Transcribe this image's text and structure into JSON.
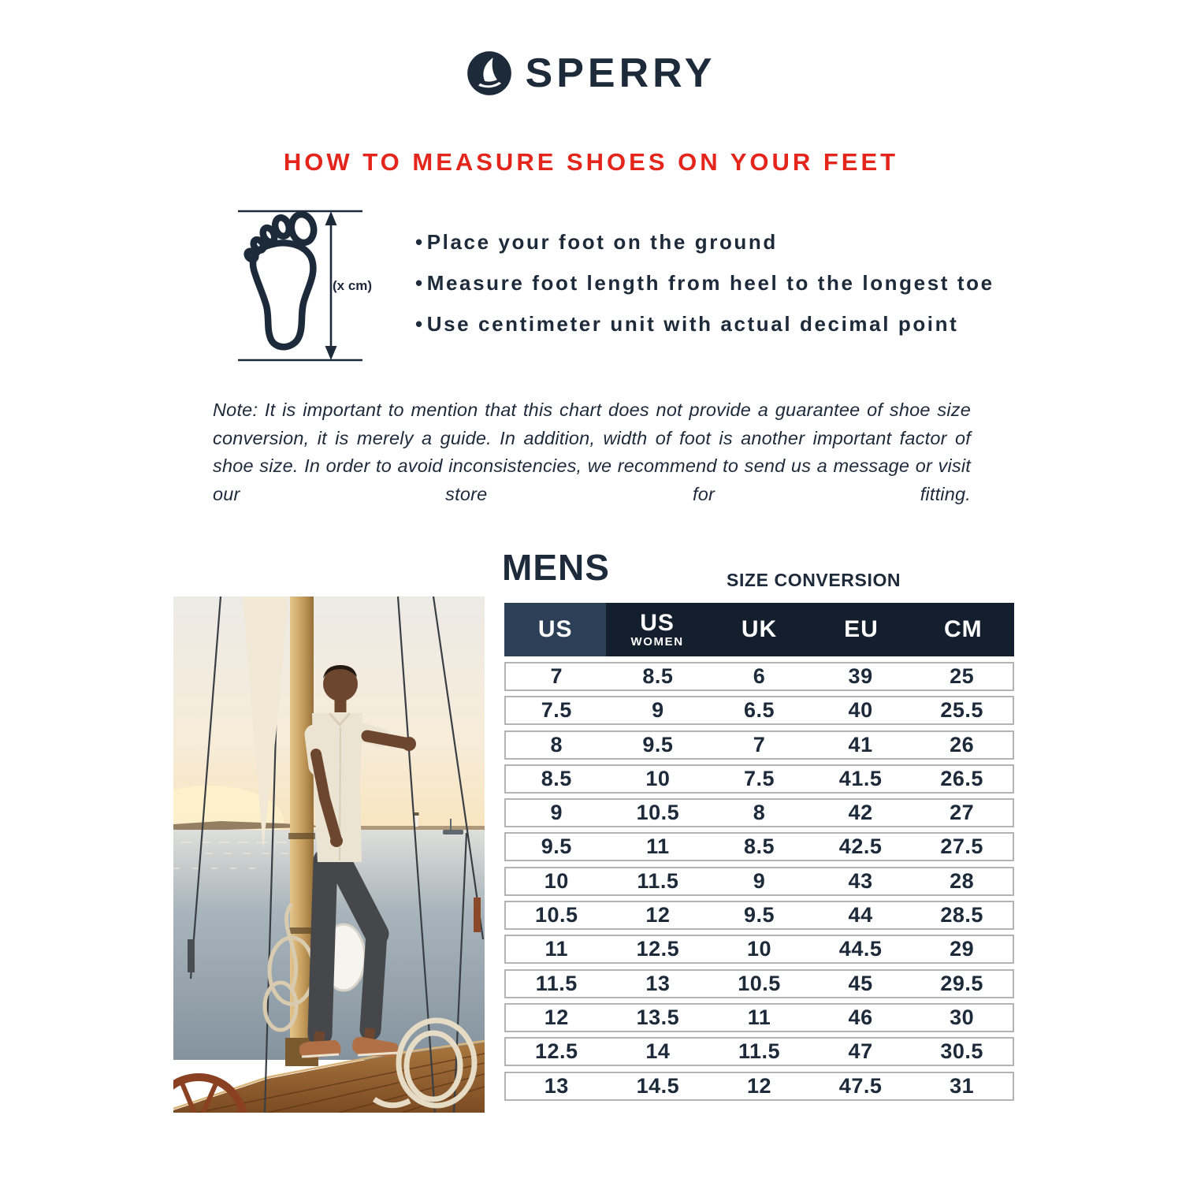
{
  "brand": {
    "name": "SPERRY"
  },
  "heading": "HOW TO MEASURE SHOES ON YOUR FEET",
  "diagram": {
    "measure_label": "(x cm)"
  },
  "instructions": [
    "Place your foot on the ground",
    "Measure foot length from heel to the longest toe",
    "Use centimeter unit with actual decimal point"
  ],
  "note": "Note: It is important to mention that this chart does not provide a guarantee of shoe size conversion, it is merely a guide. In addition, width of foot is another important factor of shoe size. In order to avoid inconsistencies, we recommend to send us a message or visit our store for fitting.",
  "table": {
    "section_title": "MENS",
    "subtitle": "SIZE CONVERSION",
    "columns": [
      {
        "label": "US"
      },
      {
        "label": "US",
        "sublabel": "WOMEN"
      },
      {
        "label": "UK"
      },
      {
        "label": "EU"
      },
      {
        "label": "CM"
      }
    ],
    "rows": [
      [
        "7",
        "8.5",
        "6",
        "39",
        "25"
      ],
      [
        "7.5",
        "9",
        "6.5",
        "40",
        "25.5"
      ],
      [
        "8",
        "9.5",
        "7",
        "41",
        "26"
      ],
      [
        "8.5",
        "10",
        "7.5",
        "41.5",
        "26.5"
      ],
      [
        "9",
        "10.5",
        "8",
        "42",
        "27"
      ],
      [
        "9.5",
        "11",
        "8.5",
        "42.5",
        "27.5"
      ],
      [
        "10",
        "11.5",
        "9",
        "43",
        "28"
      ],
      [
        "10.5",
        "12",
        "9.5",
        "44",
        "28.5"
      ],
      [
        "11",
        "12.5",
        "10",
        "44.5",
        "29"
      ],
      [
        "11.5",
        "13",
        "10.5",
        "45",
        "29.5"
      ],
      [
        "12",
        "13.5",
        "11",
        "46",
        "30"
      ],
      [
        "12.5",
        "14",
        "11.5",
        "47",
        "30.5"
      ],
      [
        "13",
        "14.5",
        "12",
        "47.5",
        "31"
      ]
    ]
  },
  "colors": {
    "navy": "#1d2a3a",
    "red": "#e4251c",
    "header_dark": "#141f2e",
    "header_light": "#2c3f57",
    "row_border": "#b3b3b3"
  }
}
